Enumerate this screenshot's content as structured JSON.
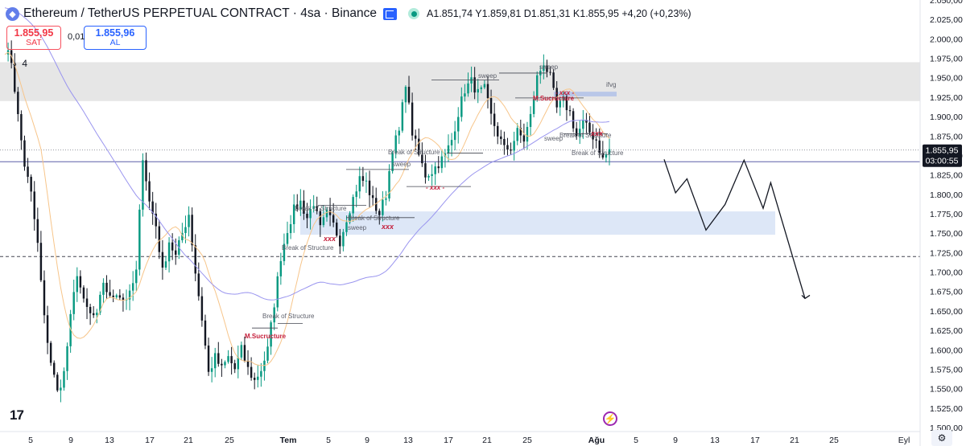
{
  "header": {
    "symbol": "Ethereum / TetherUS PERPETUAL CONTRACT · 4sa · Binance",
    "ohlc": "A1.851,74  Y1.859,81  D1.851,31  K1.855,95  +4,20 (+0,23%)"
  },
  "trade": {
    "sell_price": "1.855,95",
    "sell_label": "SAT",
    "spread": "0,01",
    "buy_price": "1.855,96",
    "buy_label": "AL"
  },
  "indicator_toggle": "4",
  "colors": {
    "up": "#089981",
    "down": "#131722",
    "ma_fast": "#f7c58a",
    "ma_slow": "#9a95ef",
    "zone": "#dde7f7",
    "band": "#e6e6e6",
    "annot_red": "#c41e3a"
  },
  "chart_data": {
    "type": "candlestick",
    "ylim": [
      1500,
      2050
    ],
    "y_ticks": [
      "1.500,00",
      "1.525,00",
      "1.550,00",
      "1.575,00",
      "1.600,00",
      "1.625,00",
      "1.650,00",
      "1.675,00",
      "1.700,00",
      "1.725,00",
      "1.750,00",
      "1.775,00",
      "1.800,00",
      "1.825,00",
      "1.850,00",
      "1.875,00",
      "1.900,00",
      "1.925,00",
      "1.950,00",
      "1.975,00",
      "2.000,00",
      "2.025,00",
      "2.050,00"
    ],
    "x_ticks": [
      "5",
      "9",
      "13",
      "17",
      "21",
      "25",
      "Tem",
      "5",
      "9",
      "13",
      "17",
      "21",
      "25",
      "Ağu",
      "5",
      "9",
      "13",
      "17",
      "21",
      "25",
      "Eyl"
    ],
    "last_price": "1.855,95",
    "countdown": "03:00:55",
    "dotted_line_price": 1857,
    "dashed_line_price": 1720,
    "purple_line_price": 1842,
    "resistance_band": [
      1920,
      1970
    ],
    "demand_zone": [
      1748,
      1778
    ],
    "ifvg_zone": [
      1926,
      1932
    ],
    "anchors": [
      [
        0,
        1987
      ],
      [
        2,
        1972
      ],
      [
        4,
        1900
      ],
      [
        6,
        1838
      ],
      [
        8,
        1800
      ],
      [
        10,
        1735
      ],
      [
        12,
        1640
      ],
      [
        14,
        1585
      ],
      [
        16,
        1545
      ],
      [
        18,
        1570
      ],
      [
        20,
        1640
      ],
      [
        22,
        1700
      ],
      [
        24,
        1660
      ],
      [
        26,
        1645
      ],
      [
        28,
        1642
      ],
      [
        30,
        1688
      ],
      [
        32,
        1665
      ],
      [
        34,
        1675
      ],
      [
        36,
        1665
      ],
      [
        38,
        1670
      ],
      [
        40,
        1700
      ],
      [
        42,
        1850
      ],
      [
        44,
        1790
      ],
      [
        46,
        1760
      ],
      [
        48,
        1700
      ],
      [
        50,
        1740
      ],
      [
        52,
        1720
      ],
      [
        54,
        1750
      ],
      [
        56,
        1775
      ],
      [
        58,
        1700
      ],
      [
        60,
        1640
      ],
      [
        62,
        1570
      ],
      [
        64,
        1590
      ],
      [
        66,
        1575
      ],
      [
        68,
        1590
      ],
      [
        70,
        1575
      ],
      [
        72,
        1600
      ],
      [
        74,
        1575
      ],
      [
        76,
        1560
      ],
      [
        78,
        1575
      ],
      [
        80,
        1600
      ],
      [
        82,
        1660
      ],
      [
        84,
        1720
      ],
      [
        86,
        1755
      ],
      [
        88,
        1780
      ],
      [
        90,
        1790
      ],
      [
        92,
        1770
      ],
      [
        94,
        1790
      ],
      [
        96,
        1755
      ],
      [
        98,
        1775
      ],
      [
        100,
        1760
      ],
      [
        102,
        1740
      ],
      [
        104,
        1770
      ],
      [
        106,
        1795
      ],
      [
        108,
        1820
      ],
      [
        110,
        1815
      ],
      [
        112,
        1790
      ],
      [
        114,
        1775
      ],
      [
        116,
        1800
      ],
      [
        118,
        1860
      ],
      [
        120,
        1880
      ],
      [
        122,
        1945
      ],
      [
        124,
        1880
      ],
      [
        126,
        1850
      ],
      [
        128,
        1825
      ],
      [
        130,
        1830
      ],
      [
        132,
        1840
      ],
      [
        134,
        1850
      ],
      [
        136,
        1870
      ],
      [
        138,
        1905
      ],
      [
        140,
        1935
      ],
      [
        142,
        1945
      ],
      [
        144,
        1930
      ],
      [
        146,
        1935
      ],
      [
        148,
        1900
      ],
      [
        150,
        1878
      ],
      [
        152,
        1858
      ],
      [
        154,
        1860
      ],
      [
        156,
        1880
      ],
      [
        158,
        1870
      ],
      [
        160,
        1900
      ],
      [
        162,
        1950
      ],
      [
        164,
        1970
      ],
      [
        166,
        1950
      ],
      [
        168,
        1910
      ],
      [
        170,
        1920
      ],
      [
        172,
        1905
      ],
      [
        174,
        1875
      ],
      [
        176,
        1892
      ],
      [
        178,
        1880
      ],
      [
        180,
        1870
      ],
      [
        182,
        1845
      ],
      [
        184,
        1858
      ]
    ],
    "projection": [
      [
        1.0,
        1845
      ],
      [
        1.3,
        1802
      ],
      [
        1.6,
        1820
      ],
      [
        2.1,
        1754
      ],
      [
        2.6,
        1787
      ],
      [
        3.1,
        1844
      ],
      [
        3.6,
        1782
      ],
      [
        3.8,
        1815
      ],
      [
        4.7,
        1666
      ]
    ],
    "annotations": [
      {
        "text": "sweep",
        "kind": "grey"
      },
      {
        "text": "sweep",
        "kind": "grey"
      },
      {
        "text": "sweep",
        "kind": "grey"
      },
      {
        "text": "sweep",
        "kind": "grey"
      },
      {
        "text": "sweep",
        "kind": "grey"
      },
      {
        "text": "ifvg",
        "kind": "grey"
      },
      {
        "text": "Break of Structure",
        "kind": "grey"
      },
      {
        "text": "Break of Structure",
        "kind": "grey"
      },
      {
        "text": "Break of Structure",
        "kind": "grey"
      },
      {
        "text": "Break of Structure",
        "kind": "grey"
      },
      {
        "text": "Break of Structure",
        "kind": "grey"
      },
      {
        "text": "Break of Structure",
        "kind": "grey"
      },
      {
        "text": "Break of Structure",
        "kind": "grey"
      },
      {
        "text": "M.Sucructure",
        "kind": "red"
      },
      {
        "text": "M.Sucructure",
        "kind": "red"
      },
      {
        "text": "xxx",
        "kind": "red"
      },
      {
        "text": "- xxx -",
        "kind": "red"
      },
      {
        "text": "xxx",
        "kind": "red"
      },
      {
        "text": "- xxx -",
        "kind": "red"
      },
      {
        "text": "xxx",
        "kind": "red"
      }
    ]
  }
}
